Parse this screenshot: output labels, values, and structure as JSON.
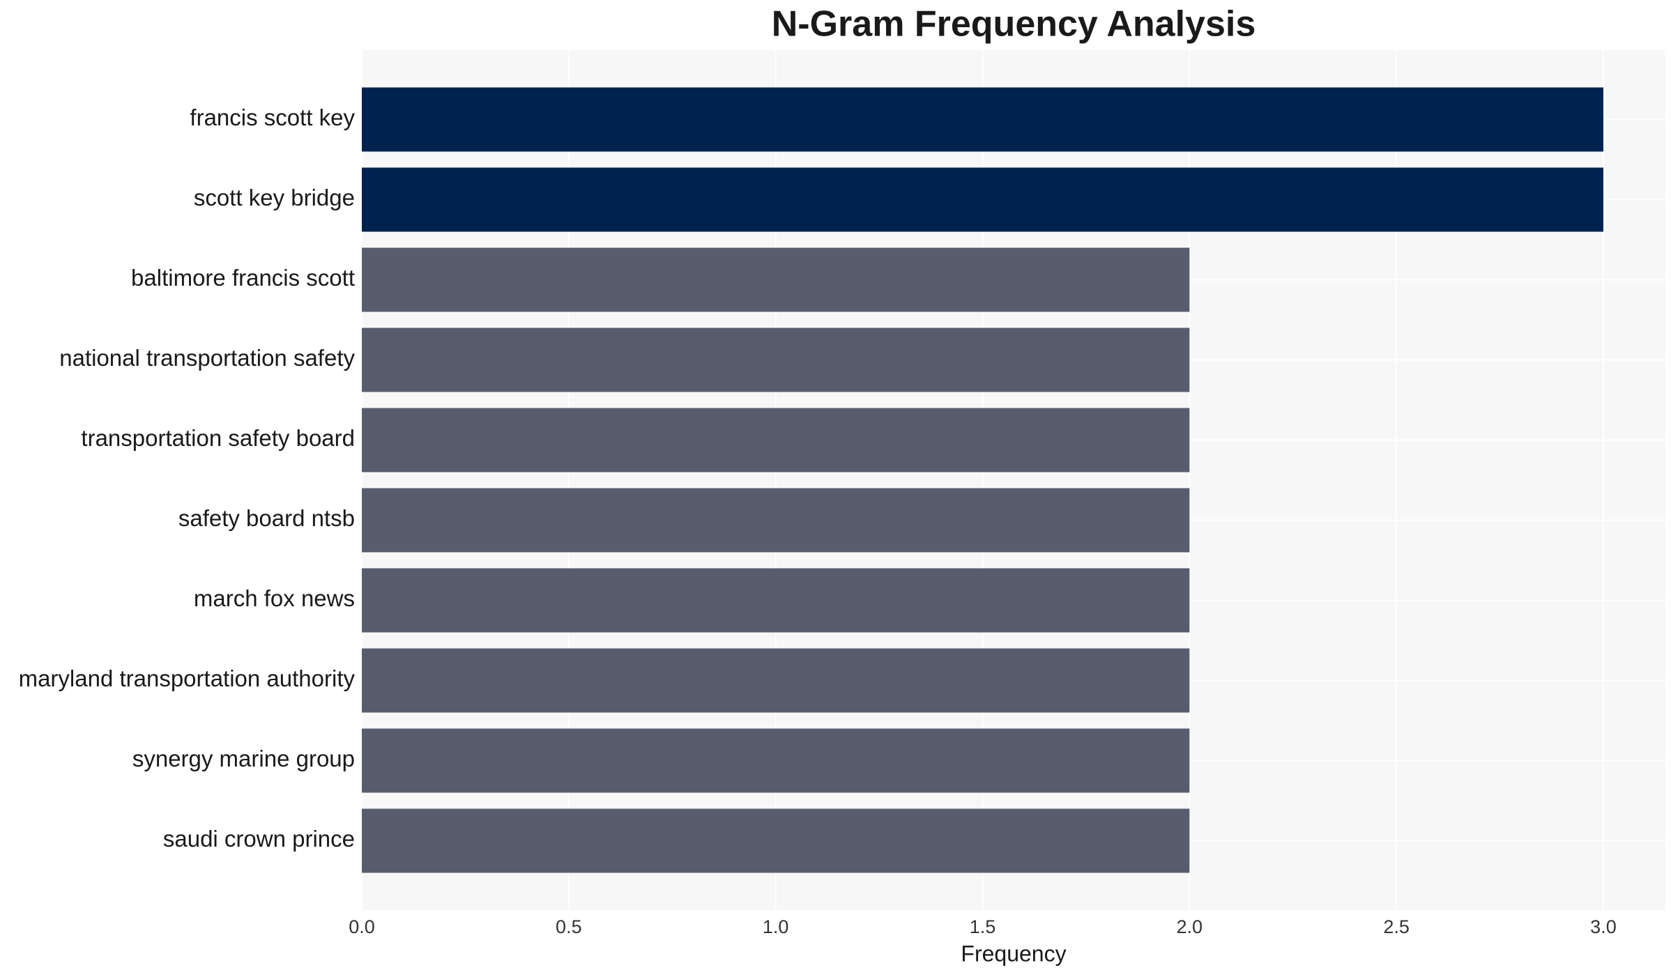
{
  "chart_data": {
    "type": "bar",
    "orientation": "horizontal",
    "title": "N-Gram Frequency Analysis",
    "x_label": "Frequency",
    "categories": [
      "francis scott key",
      "scott key bridge",
      "baltimore francis scott",
      "national transportation safety",
      "transportation safety board",
      "safety board ntsb",
      "march fox news",
      "maryland transportation authority",
      "synergy marine group",
      "saudi crown prince"
    ],
    "values": [
      3,
      3,
      2,
      2,
      2,
      2,
      2,
      2,
      2,
      2
    ],
    "colors": [
      "#00224e",
      "#00224e",
      "#575d6c",
      "#575d6c",
      "#575d6c",
      "#575d6c",
      "#575d6c",
      "#575d6c",
      "#575d6c",
      "#575d6c"
    ],
    "xlim": [
      0,
      3.15
    ],
    "xticks": [
      {
        "value": 0,
        "label": "0.0"
      },
      {
        "value": 0.5,
        "label": "0.5"
      },
      {
        "value": 1,
        "label": "1.0"
      },
      {
        "value": 1.5,
        "label": "1.5"
      },
      {
        "value": 2,
        "label": "2.0"
      },
      {
        "value": 2.5,
        "label": "2.5"
      },
      {
        "value": 3,
        "label": "3.0"
      }
    ],
    "grid": true
  }
}
